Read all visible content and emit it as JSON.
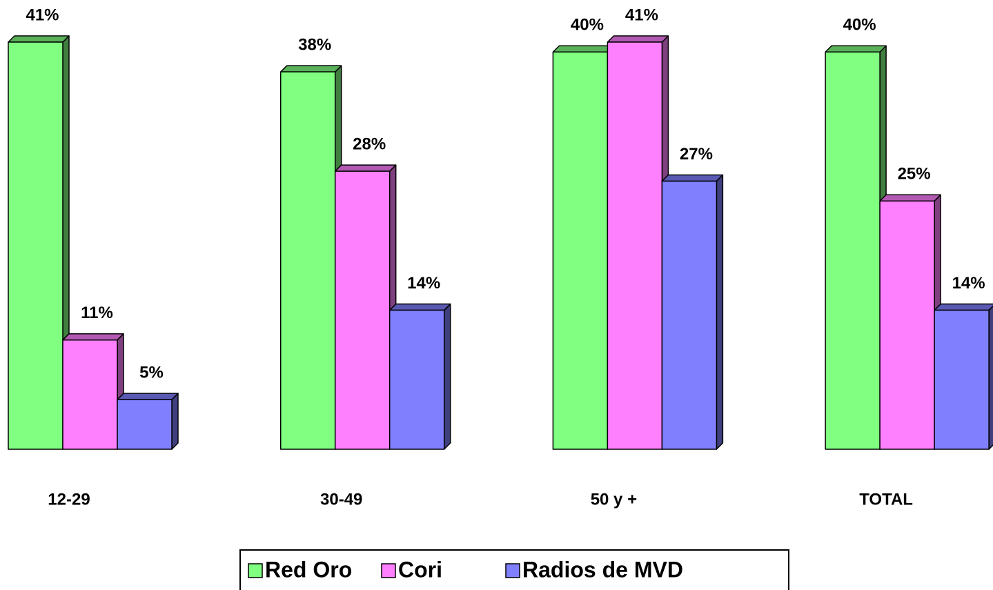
{
  "chart_data": {
    "type": "bar3d",
    "categories": [
      "12-29",
      "30-49",
      "50 y +",
      "TOTAL"
    ],
    "series": [
      {
        "name": "Red Oro",
        "color": "#80ff80",
        "values": [
          41,
          38,
          40,
          40
        ],
        "value_labels": [
          "41%",
          "38%",
          "40%",
          "40%"
        ]
      },
      {
        "name": "Cori",
        "color": "#ff80ff",
        "values": [
          11,
          28,
          41,
          25
        ],
        "value_labels": [
          "11%",
          "28%",
          "41%",
          "25%"
        ]
      },
      {
        "name": "Radios de MVD",
        "color": "#8080ff",
        "values": [
          5,
          14,
          27,
          14
        ],
        "value_labels": [
          "5%",
          "14%",
          "27%",
          "14%"
        ]
      }
    ],
    "legend": "bottom"
  }
}
